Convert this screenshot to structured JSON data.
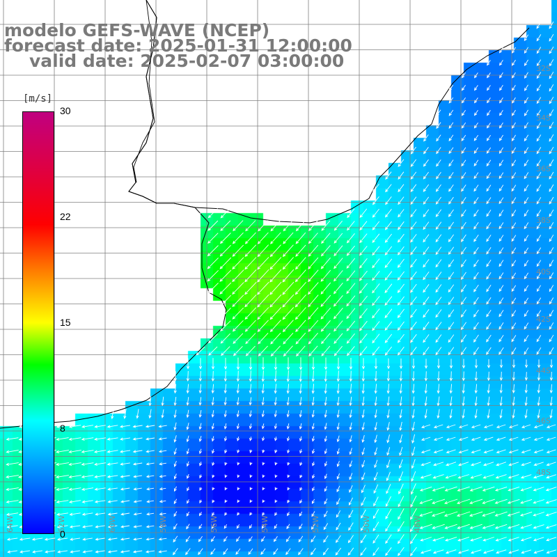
{
  "title": {
    "line1": "modelo GEFS-WAVE (NCEP)",
    "line2": "forecast date: 2025-01-31 12:00:00",
    "line3": "valid date: 2025-02-07 03:00:00"
  },
  "colorbar": {
    "unit": "[m/s]",
    "ticks": [
      "30",
      "22",
      "15",
      "8",
      "0"
    ],
    "min": 0,
    "max": 30,
    "colors": [
      "#0000ff",
      "#0080ff",
      "#00ffff",
      "#00ff00",
      "#80ff00",
      "#ffff00",
      "#ff8000",
      "#ff0000",
      "#e00040",
      "#c00080"
    ]
  },
  "map": {
    "grid_color": "#7f7f7f",
    "coast_color": "#000000",
    "lat_labels": [
      "32S",
      "34S",
      "36S",
      "38S",
      "40S",
      "42S",
      "44S",
      "46S",
      "48S"
    ],
    "lon_labels": [
      "64W",
      "62W",
      "60W",
      "58W",
      "56W",
      "54W",
      "52W",
      "50W",
      "48W"
    ]
  },
  "chart_data": {
    "type": "heatmap",
    "field": "wind speed and direction",
    "units": "m/s",
    "range": [
      0,
      30
    ],
    "regions": [
      {
        "area": "Rio de la Plata estuary / Uruguay coast",
        "speed": 10,
        "direction": "to SW"
      },
      {
        "area": "Buenos Aires province coast",
        "speed": 11,
        "direction": "to S"
      },
      {
        "area": "Brazil shelf (northeast)",
        "speed": 5,
        "direction": "to SW"
      },
      {
        "area": "open ocean east",
        "speed": 6,
        "direction": "to SW"
      },
      {
        "area": "low-wind center south",
        "speed": 2,
        "direction": "variable"
      },
      {
        "area": "southeast corner",
        "speed": 10,
        "direction": "to W"
      },
      {
        "area": "southwest nearshore",
        "speed": 9,
        "direction": "to W"
      }
    ]
  }
}
